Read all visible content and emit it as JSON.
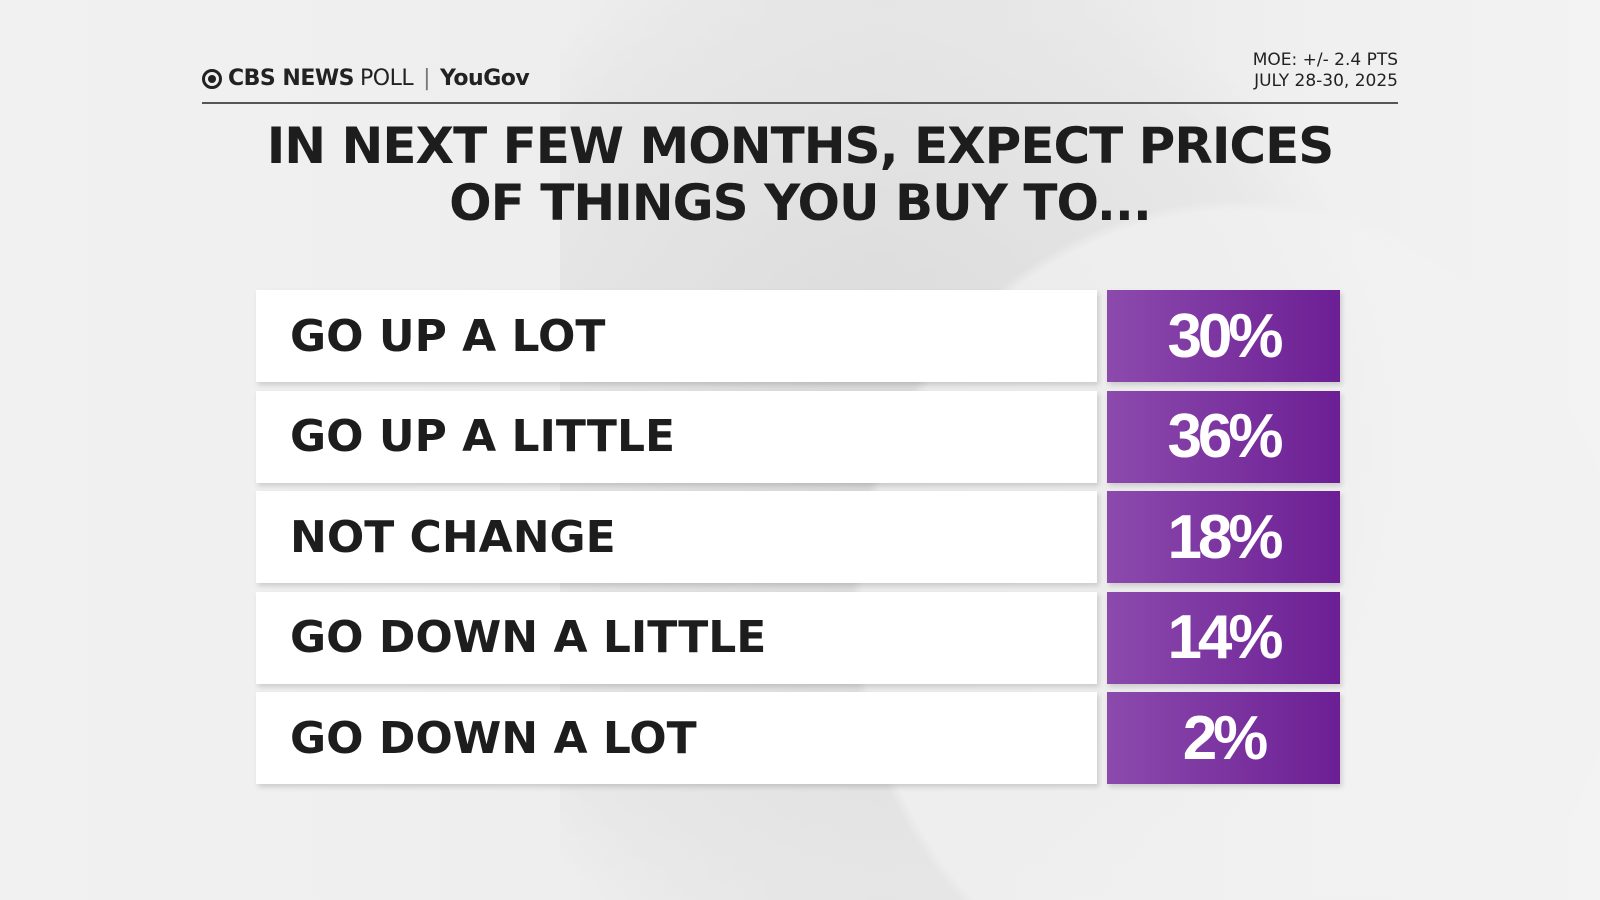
{
  "header": {
    "brand": "CBS NEWS",
    "poll": "POLL",
    "partner": "YouGov",
    "moe": "MOE: +/- 2.4 PTS",
    "date": "JULY 28-30, 2025"
  },
  "title_lines": [
    "IN NEXT FEW MONTHS, EXPECT PRICES",
    "OF THINGS YOU BUY TO..."
  ],
  "colors": {
    "bar_start": "#8c4aad",
    "bar_end": "#6c1f94"
  },
  "chart_data": {
    "type": "table",
    "title": "IN NEXT FEW MONTHS, EXPECT PRICES OF THINGS YOU BUY TO...",
    "categories": [
      "GO UP A LOT",
      "GO UP A LITTLE",
      "NOT CHANGE",
      "GO DOWN A LITTLE",
      "GO DOWN A LOT"
    ],
    "values": [
      30,
      36,
      18,
      14,
      2
    ],
    "labels": [
      "30%",
      "36%",
      "18%",
      "14%",
      "2%"
    ]
  }
}
